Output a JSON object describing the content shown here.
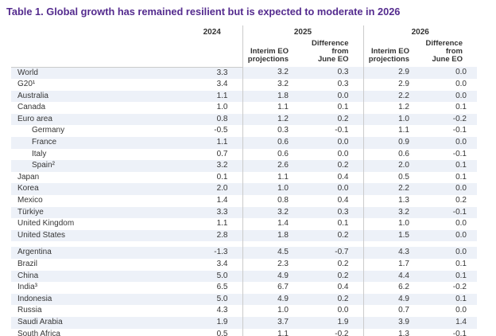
{
  "title": "Table 1. Global growth has remained resilient but is expected to moderate in 2026",
  "chart_data": {
    "type": "table",
    "title": "Table 1. Global growth has remained resilient but is expected to moderate in 2026",
    "header": {
      "y2024": "2024",
      "y2025": "2025",
      "y2026": "2026",
      "sub_interim": "Interim EO\nprojections",
      "sub_difference": "Difference from\nJune EO"
    },
    "columns": [
      "2024",
      "2025 Interim EO projections",
      "2025 Difference from June EO",
      "2026 Interim EO projections",
      "2026 Difference from June EO"
    ],
    "groups": [
      {
        "rows": [
          {
            "label": "World",
            "indent": false,
            "values": [
              "3.3",
              "3.2",
              "0.3",
              "2.9",
              "0.0"
            ]
          },
          {
            "label": "G20¹",
            "indent": false,
            "values": [
              "3.4",
              "3.2",
              "0.3",
              "2.9",
              "0.0"
            ]
          },
          {
            "label": "Australia",
            "indent": false,
            "values": [
              "1.1",
              "1.8",
              "0.0",
              "2.2",
              "0.0"
            ]
          },
          {
            "label": "Canada",
            "indent": false,
            "values": [
              "1.0",
              "1.1",
              "0.1",
              "1.2",
              "0.1"
            ]
          },
          {
            "label": "Euro area",
            "indent": false,
            "values": [
              "0.8",
              "1.2",
              "0.2",
              "1.0",
              "-0.2"
            ]
          },
          {
            "label": "Germany",
            "indent": true,
            "values": [
              "-0.5",
              "0.3",
              "-0.1",
              "1.1",
              "-0.1"
            ]
          },
          {
            "label": "France",
            "indent": true,
            "values": [
              "1.1",
              "0.6",
              "0.0",
              "0.9",
              "0.0"
            ]
          },
          {
            "label": "Italy",
            "indent": true,
            "values": [
              "0.7",
              "0.6",
              "0.0",
              "0.6",
              "-0.1"
            ]
          },
          {
            "label": "Spain²",
            "indent": true,
            "values": [
              "3.2",
              "2.6",
              "0.2",
              "2.0",
              "0.1"
            ]
          },
          {
            "label": "Japan",
            "indent": false,
            "values": [
              "0.1",
              "1.1",
              "0.4",
              "0.5",
              "0.1"
            ]
          },
          {
            "label": "Korea",
            "indent": false,
            "values": [
              "2.0",
              "1.0",
              "0.0",
              "2.2",
              "0.0"
            ]
          },
          {
            "label": "Mexico",
            "indent": false,
            "values": [
              "1.4",
              "0.8",
              "0.4",
              "1.3",
              "0.2"
            ]
          },
          {
            "label": "Türkiye",
            "indent": false,
            "values": [
              "3.3",
              "3.2",
              "0.3",
              "3.2",
              "-0.1"
            ]
          },
          {
            "label": "United Kingdom",
            "indent": false,
            "values": [
              "1.1",
              "1.4",
              "0.1",
              "1.0",
              "0.0"
            ]
          },
          {
            "label": "United States",
            "indent": false,
            "values": [
              "2.8",
              "1.8",
              "0.2",
              "1.5",
              "0.0"
            ]
          }
        ]
      },
      {
        "rows": [
          {
            "label": "Argentina",
            "indent": false,
            "values": [
              "-1.3",
              "4.5",
              "-0.7",
              "4.3",
              "0.0"
            ]
          },
          {
            "label": "Brazil",
            "indent": false,
            "values": [
              "3.4",
              "2.3",
              "0.2",
              "1.7",
              "0.1"
            ]
          },
          {
            "label": "China",
            "indent": false,
            "values": [
              "5.0",
              "4.9",
              "0.2",
              "4.4",
              "0.1"
            ]
          },
          {
            "label": "India³",
            "indent": false,
            "values": [
              "6.5",
              "6.7",
              "0.4",
              "6.2",
              "-0.2"
            ]
          },
          {
            "label": "Indonesia",
            "indent": false,
            "values": [
              "5.0",
              "4.9",
              "0.2",
              "4.9",
              "0.1"
            ]
          },
          {
            "label": "Russia",
            "indent": false,
            "values": [
              "4.3",
              "1.0",
              "0.0",
              "0.7",
              "0.0"
            ]
          },
          {
            "label": "Saudi Arabia",
            "indent": false,
            "values": [
              "1.9",
              "3.7",
              "1.9",
              "3.9",
              "1.4"
            ]
          },
          {
            "label": "South Africa",
            "indent": false,
            "values": [
              "0.5",
              "1.1",
              "-0.2",
              "1.3",
              "-0.1"
            ]
          }
        ]
      }
    ]
  },
  "colors": {
    "title_purple": "#542b8e",
    "row_stripe": "#edf1f8",
    "divider_gray": "#cbcbcb",
    "body_text": "#363636"
  }
}
